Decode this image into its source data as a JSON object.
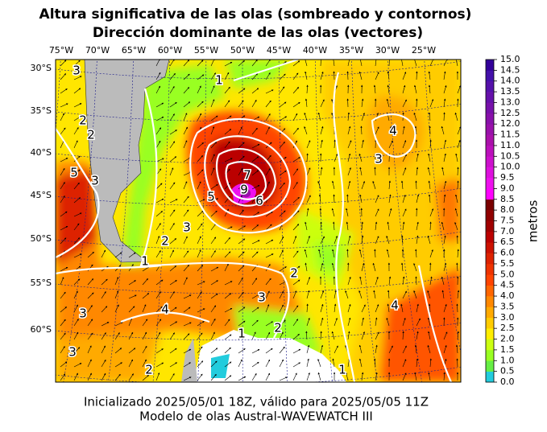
{
  "title": [
    "Altura significativa de las olas (sombreado y contornos)",
    "Dirección dominante de las olas (vectores)"
  ],
  "map": {
    "lon_labels": [
      "75°W",
      "70°W",
      "65°W",
      "60°W",
      "55°W",
      "50°W",
      "45°W",
      "40°W",
      "35°W",
      "30°W",
      "25°W"
    ],
    "lat_labels": [
      "30°S",
      "35°S",
      "40°S",
      "45°S",
      "50°S",
      "55°S",
      "60°S"
    ],
    "contour_labels": [
      "3",
      "2",
      "2",
      "5",
      "3",
      "1",
      "7",
      "9",
      "6",
      "5",
      "4",
      "3",
      "2",
      "1",
      "2",
      "3",
      "4",
      "3",
      "3",
      "2",
      "1",
      "4",
      "2",
      "1",
      "3"
    ]
  },
  "colorbar": {
    "label": "metros",
    "ticks": [
      "0.0",
      "0.5",
      "1.0",
      "1.5",
      "2.0",
      "2.5",
      "3.0",
      "3.5",
      "4.0",
      "4.5",
      "5.0",
      "5.5",
      "6.0",
      "6.5",
      "7.0",
      "7.5",
      "8.0",
      "8.5",
      "9.0",
      "9.5",
      "10.0",
      "10.5",
      "11.0",
      "11.5",
      "12.0",
      "12.5",
      "13.0",
      "13.5",
      "14.0",
      "14.5",
      "15.0"
    ],
    "colors": [
      "#22ccdd",
      "#66ee44",
      "#99ff22",
      "#ccff11",
      "#ffee00",
      "#ffcc00",
      "#ffaa00",
      "#ff8800",
      "#ff6600",
      "#ff4400",
      "#ee3300",
      "#dd2200",
      "#cc1100",
      "#bb0000",
      "#a00000",
      "#900000",
      "#7a0000",
      "#ff00ff",
      "#ee11ee",
      "#dd11dd",
      "#cc11cc",
      "#bb11bb",
      "#aa11aa",
      "#9911aa",
      "#8811aa",
      "#7711aa",
      "#6611aa",
      "#5511aa",
      "#4411aa",
      "#330099"
    ]
  },
  "footer": [
    "Inicializado 2025/05/01 18Z, válido para 2025/05/05 11Z",
    "Modelo de olas Austral-WAVEWATCH III"
  ]
}
